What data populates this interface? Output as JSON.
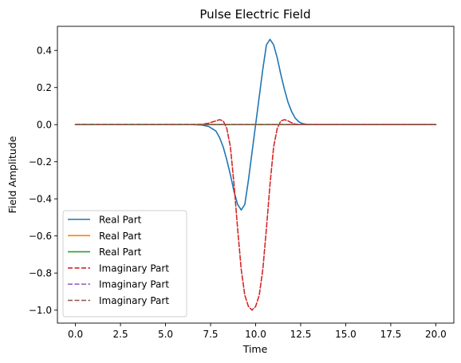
{
  "chart_data": {
    "type": "line",
    "title": "Pulse Electric Field",
    "xlabel": "Time",
    "ylabel": "Field Amplitude",
    "xlim": [
      -1.0,
      21.0
    ],
    "ylim": [
      -1.07,
      0.53
    ],
    "xticks": [
      0.0,
      2.5,
      5.0,
      7.5,
      10.0,
      12.5,
      15.0,
      17.5,
      20.0
    ],
    "xtick_labels": [
      "0.0",
      "2.5",
      "5.0",
      "7.5",
      "10.0",
      "12.5",
      "15.0",
      "17.5",
      "20.0"
    ],
    "yticks": [
      0.4,
      0.2,
      0.0,
      -0.2,
      -0.4,
      -0.6,
      -0.8,
      -1.0
    ],
    "ytick_labels": [
      "0.4",
      "0.2",
      "0.0",
      "−0.2",
      "−0.4",
      "−0.6",
      "−0.8",
      "−1.0"
    ],
    "grid": false,
    "legend_position": "lower-left",
    "x": [
      0,
      6.5,
      7.0,
      7.4,
      7.8,
      8.0,
      8.2,
      8.4,
      8.6,
      8.8,
      9.0,
      9.2,
      9.4,
      9.6,
      9.8,
      10.0,
      10.2,
      10.4,
      10.6,
      10.8,
      11.0,
      11.2,
      11.4,
      11.6,
      11.8,
      12.0,
      12.2,
      12.4,
      12.6,
      12.8,
      13.0,
      13.5,
      20
    ],
    "series": [
      {
        "name": "Real Part",
        "color": "#1f77b4",
        "dash": "solid",
        "values": [
          0,
          0,
          -0.002,
          -0.01,
          -0.035,
          -0.07,
          -0.12,
          -0.19,
          -0.27,
          -0.36,
          -0.43,
          -0.46,
          -0.43,
          -0.3,
          -0.15,
          0.0,
          0.15,
          0.3,
          0.43,
          0.46,
          0.43,
          0.36,
          0.27,
          0.19,
          0.12,
          0.07,
          0.035,
          0.015,
          0.006,
          0.002,
          0.0,
          0,
          0
        ]
      },
      {
        "name": "Real Part",
        "color": "#ff7f0e",
        "dash": "solid",
        "values": [
          0,
          0,
          0,
          0,
          0,
          0,
          0,
          0,
          0,
          0,
          0,
          0,
          0,
          0,
          0,
          0,
          0,
          0,
          0,
          0,
          0,
          0,
          0,
          0,
          0,
          0,
          0,
          0,
          0,
          0,
          0,
          0,
          0
        ]
      },
      {
        "name": "Real Part",
        "color": "#2ca02c",
        "dash": "solid",
        "values": [
          0,
          0,
          0,
          0,
          0,
          0,
          0,
          0,
          0,
          0,
          0,
          0,
          0,
          0,
          0,
          0,
          0,
          0,
          0,
          0,
          0,
          0,
          0,
          0,
          0,
          0,
          0,
          0,
          0,
          0,
          0,
          0,
          0
        ]
      },
      {
        "name": "Imaginary Part",
        "color": "#d62728",
        "dash": "dashed",
        "values": [
          0,
          0,
          0.002,
          0.008,
          0.02,
          0.027,
          0.02,
          -0.02,
          -0.12,
          -0.32,
          -0.56,
          -0.78,
          -0.92,
          -0.98,
          -1.0,
          -0.98,
          -0.92,
          -0.78,
          -0.56,
          -0.32,
          -0.12,
          -0.02,
          0.02,
          0.027,
          0.02,
          0.01,
          0.003,
          0,
          0,
          0,
          0,
          0,
          0
        ]
      },
      {
        "name": "Imaginary Part",
        "color": "#9467bd",
        "dash": "dashed",
        "values": [
          0,
          0,
          0,
          0,
          0,
          0,
          0,
          0,
          0,
          0,
          0,
          0,
          0,
          0,
          0,
          0,
          0,
          0,
          0,
          0,
          0,
          0,
          0,
          0,
          0,
          0,
          0,
          0,
          0,
          0,
          0,
          0,
          0
        ]
      },
      {
        "name": "Imaginary Part",
        "color": "#8c564b",
        "dash": "dashed",
        "values": [
          0,
          0,
          0,
          0,
          0,
          0,
          0,
          0,
          0,
          0,
          0,
          0,
          0,
          0,
          0,
          0,
          0,
          0,
          0,
          0,
          0,
          0,
          0,
          0,
          0,
          0,
          0,
          0,
          0,
          0,
          0,
          0,
          0
        ]
      }
    ]
  }
}
